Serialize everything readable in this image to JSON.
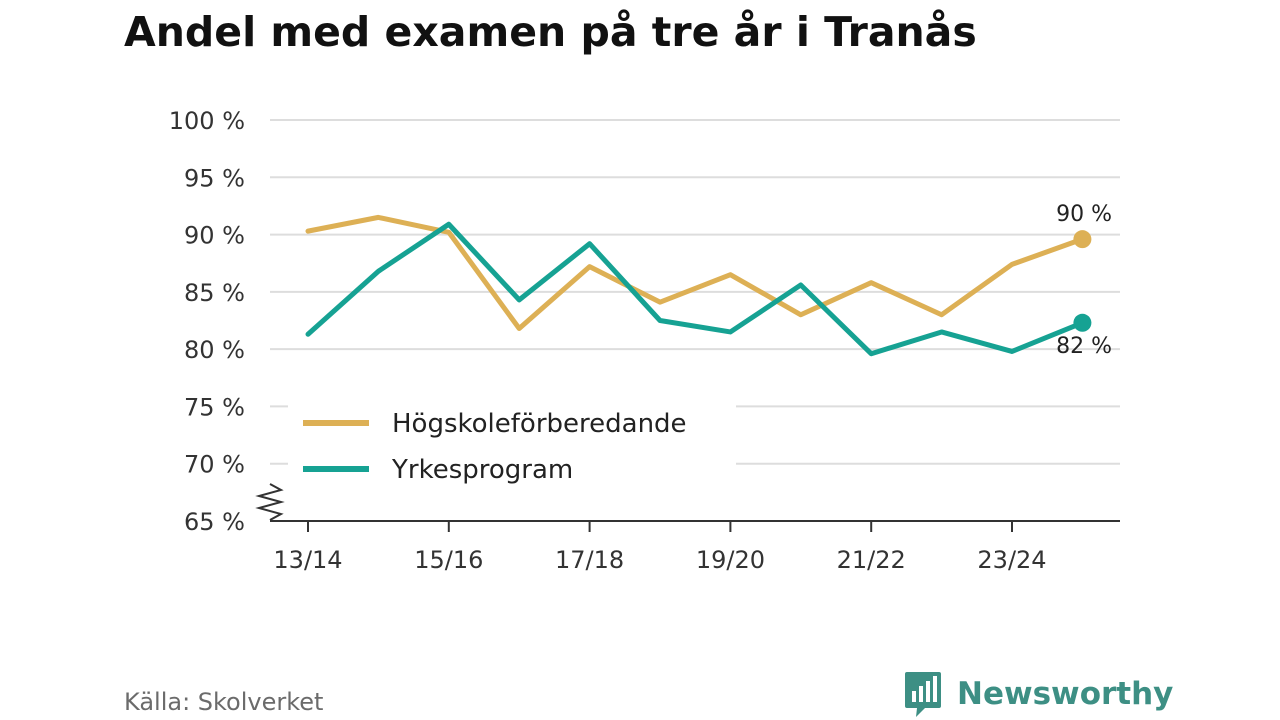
{
  "title": "Andel med examen på tre år i Tranås",
  "source": "Källa: Skolverket",
  "logo": {
    "text": "Newsworthy",
    "icon": "bar-chart-speech-icon",
    "color": "#3d8f84"
  },
  "chart_data": {
    "type": "line",
    "title": "Andel med examen på tre år i Tranås",
    "xlabel": "",
    "ylabel": "",
    "ylim": [
      65,
      100
    ],
    "yticks": [
      65,
      70,
      75,
      80,
      85,
      90,
      95,
      100
    ],
    "ytick_suffix": " %",
    "x": [
      "13/14",
      "14/15",
      "15/16",
      "16/17",
      "17/18",
      "18/19",
      "19/20",
      "20/21",
      "21/22",
      "22/23",
      "23/24",
      "24/25"
    ],
    "x_tick_labels": [
      "13/14",
      "15/16",
      "17/18",
      "19/20",
      "21/22",
      "23/24"
    ],
    "grid": true,
    "legend": "bottom-left",
    "series": [
      {
        "name": "Högskoleförberedande",
        "color": "#ddb055",
        "values": [
          90.3,
          91.5,
          90.2,
          81.8,
          87.2,
          84.1,
          86.5,
          83.0,
          85.8,
          83.0,
          87.4,
          89.6
        ],
        "end_label": "90 %"
      },
      {
        "name": "Yrkesprogram",
        "color": "#16a293",
        "values": [
          81.3,
          86.8,
          90.9,
          84.3,
          89.2,
          82.5,
          81.5,
          85.6,
          79.6,
          81.5,
          79.8,
          82.3
        ],
        "end_label": "82 %"
      }
    ]
  }
}
